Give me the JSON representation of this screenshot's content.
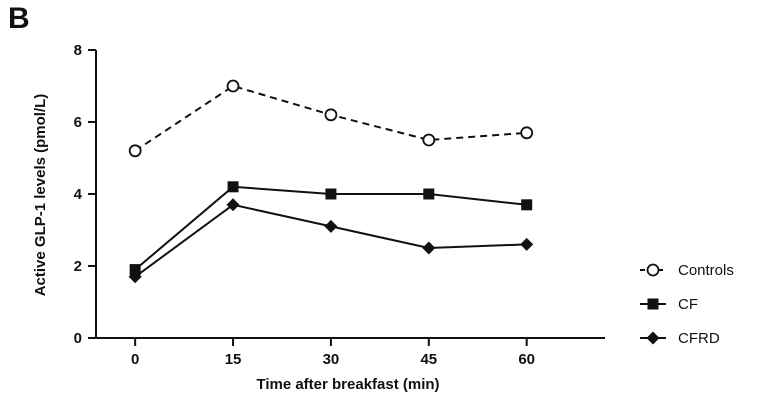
{
  "panel_label": "B",
  "chart_data": {
    "type": "line",
    "title": "",
    "xlabel": "Time after breakfast (min)",
    "ylabel": "Active GLP-1 levels (pmol/L)",
    "x": [
      0,
      15,
      30,
      45,
      60
    ],
    "x_tick_labels": [
      "0",
      "15",
      "30",
      "45",
      "60"
    ],
    "y_ticks": [
      0,
      2,
      4,
      6,
      8
    ],
    "y_tick_labels": [
      "0",
      "2",
      "4",
      "6",
      "8"
    ],
    "xlim": [
      -6,
      72
    ],
    "ylim": [
      0,
      8
    ],
    "grid": false,
    "legend_position": "right",
    "series": [
      {
        "name": "Controls",
        "marker": "open-circle",
        "line": "dashed",
        "color": "#111111",
        "values": [
          5.2,
          7.0,
          6.2,
          5.5,
          5.7
        ]
      },
      {
        "name": "CF",
        "marker": "square",
        "line": "solid",
        "color": "#111111",
        "values": [
          1.9,
          4.2,
          4.0,
          4.0,
          3.7
        ]
      },
      {
        "name": "CFRD",
        "marker": "diamond",
        "line": "solid",
        "color": "#111111",
        "values": [
          1.7,
          3.7,
          3.1,
          2.5,
          2.6
        ]
      }
    ]
  }
}
